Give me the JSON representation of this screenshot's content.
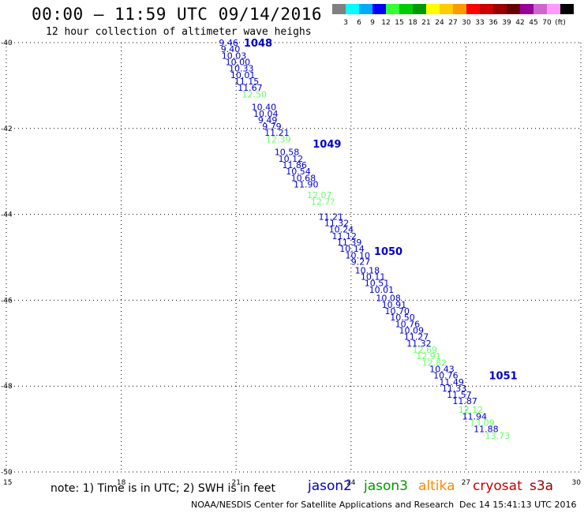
{
  "header": {
    "title": "00:00 – 11:59 UTC 09/14/2016",
    "subtitle": "12 hour collection of altimeter wave heighs"
  },
  "scale": {
    "colors": [
      "#808080",
      "#00ffff",
      "#00aaff",
      "#0000ff",
      "#33ff33",
      "#00cc00",
      "#009900",
      "#ffff00",
      "#ffcc00",
      "#ff9900",
      "#ff0000",
      "#cc0000",
      "#990000",
      "#660000",
      "#990099",
      "#cc66cc",
      "#ff99ff",
      "#000000"
    ],
    "labels": [
      "3",
      "6",
      "9",
      "12",
      "15",
      "18",
      "21",
      "24",
      "27",
      "30",
      "33",
      "36",
      "39",
      "42",
      "45",
      "70",
      "(ft)"
    ]
  },
  "note": "note: 1) Time is in UTC; 2) SWH is in feet",
  "satellites": [
    {
      "name": "jason2",
      "color": "#0000cc"
    },
    {
      "name": "jason3",
      "color": "#009900"
    },
    {
      "name": "altika",
      "color": "#ff8800"
    },
    {
      "name": "cryosat",
      "color": "#cc0000"
    },
    {
      "name": "s3a",
      "color": "#990000"
    }
  ],
  "footer": {
    "credit": "NOAA/NESDIS Center for Satellite Applications and Research",
    "timestamp": "Dec 14 15:41:13 UTC 2016"
  },
  "chart_data": {
    "type": "scatter",
    "xlim": [
      15,
      30
    ],
    "ylim": [
      -50,
      -40
    ],
    "x_ticks": [
      "15",
      "18",
      "21",
      "24",
      "27",
      "30"
    ],
    "y_ticks": [
      "-40",
      "-42",
      "-44",
      "-46",
      "-48",
      "-50"
    ],
    "grid": true,
    "time_markers": [
      {
        "x": 21.2,
        "y": -40.0,
        "label": "1048"
      },
      {
        "x": 23.0,
        "y": -42.35,
        "label": "1049"
      },
      {
        "x": 24.6,
        "y": -44.85,
        "label": "1050"
      },
      {
        "x": 27.6,
        "y": -47.75,
        "label": "1051"
      }
    ],
    "series": [
      {
        "name": "jason2",
        "color": "#0000cc",
        "points": [
          [
            20.55,
            -40.0,
            "9.46"
          ],
          [
            20.6,
            -40.15,
            "9.40"
          ],
          [
            20.62,
            -40.3,
            "10.03"
          ],
          [
            20.72,
            -40.45,
            "10.00"
          ],
          [
            20.81,
            -40.6,
            "10.33"
          ],
          [
            20.85,
            -40.75,
            "10.01"
          ],
          [
            20.95,
            -40.9,
            "11.15"
          ],
          [
            21.04,
            -41.05,
            "11.67"
          ],
          [
            21.4,
            -41.5,
            "10.40"
          ],
          [
            21.45,
            -41.65,
            "10.04"
          ],
          [
            21.57,
            -41.8,
            "9.49"
          ],
          [
            21.68,
            -41.95,
            "9.79"
          ],
          [
            21.74,
            -42.1,
            "11.21"
          ],
          [
            22.0,
            -42.55,
            "10.58"
          ],
          [
            22.1,
            -42.7,
            "10.12"
          ],
          [
            22.2,
            -42.85,
            "11.86"
          ],
          [
            22.3,
            -43.0,
            "10.54"
          ],
          [
            22.43,
            -43.15,
            "10.68"
          ],
          [
            22.5,
            -43.3,
            "11.90"
          ],
          [
            23.15,
            -44.05,
            "11.21"
          ],
          [
            23.3,
            -44.2,
            "11.32"
          ],
          [
            23.42,
            -44.35,
            "10.24"
          ],
          [
            23.5,
            -44.5,
            "11.12"
          ],
          [
            23.63,
            -44.65,
            "11.39"
          ],
          [
            23.7,
            -44.8,
            "10.14"
          ],
          [
            23.85,
            -44.95,
            "10.10"
          ],
          [
            24.0,
            -45.1,
            "9.27"
          ],
          [
            24.1,
            -45.3,
            "10.18"
          ],
          [
            24.25,
            -45.45,
            "10.11"
          ],
          [
            24.35,
            -45.6,
            "10.51"
          ],
          [
            24.47,
            -45.75,
            "10.01"
          ],
          [
            24.65,
            -45.95,
            "10.08"
          ],
          [
            24.8,
            -46.1,
            "10.91"
          ],
          [
            24.88,
            -46.25,
            "10.70"
          ],
          [
            25.02,
            -46.4,
            "10.50"
          ],
          [
            25.15,
            -46.55,
            "10.76"
          ],
          [
            25.25,
            -46.7,
            "10.09"
          ],
          [
            25.38,
            -46.85,
            "11.27"
          ],
          [
            25.45,
            -47.0,
            "11.32"
          ],
          [
            26.05,
            -47.6,
            "10.43"
          ],
          [
            26.15,
            -47.75,
            "10.76"
          ],
          [
            26.3,
            -47.9,
            "11.49"
          ],
          [
            26.37,
            -48.05,
            "11.33"
          ],
          [
            26.5,
            -48.2,
            "11.57"
          ],
          [
            26.65,
            -48.35,
            "11.87"
          ],
          [
            26.9,
            -48.7,
            "11.94"
          ],
          [
            27.2,
            -49.0,
            "11.88"
          ]
        ]
      },
      {
        "name": "jason3",
        "color": "#66ff66",
        "points": [
          [
            21.15,
            -41.2,
            "12.50"
          ],
          [
            21.78,
            -42.25,
            "12.39"
          ],
          [
            22.85,
            -43.55,
            "12.07"
          ],
          [
            22.95,
            -43.7,
            "12.7?"
          ],
          [
            25.6,
            -47.15,
            "12.69"
          ],
          [
            25.7,
            -47.3,
            "12.91"
          ],
          [
            25.85,
            -47.45,
            "12.82"
          ],
          [
            26.8,
            -48.55,
            "12.12"
          ],
          [
            27.1,
            -48.85,
            "13.09"
          ],
          [
            27.5,
            -49.15,
            "13.73"
          ]
        ]
      }
    ]
  }
}
